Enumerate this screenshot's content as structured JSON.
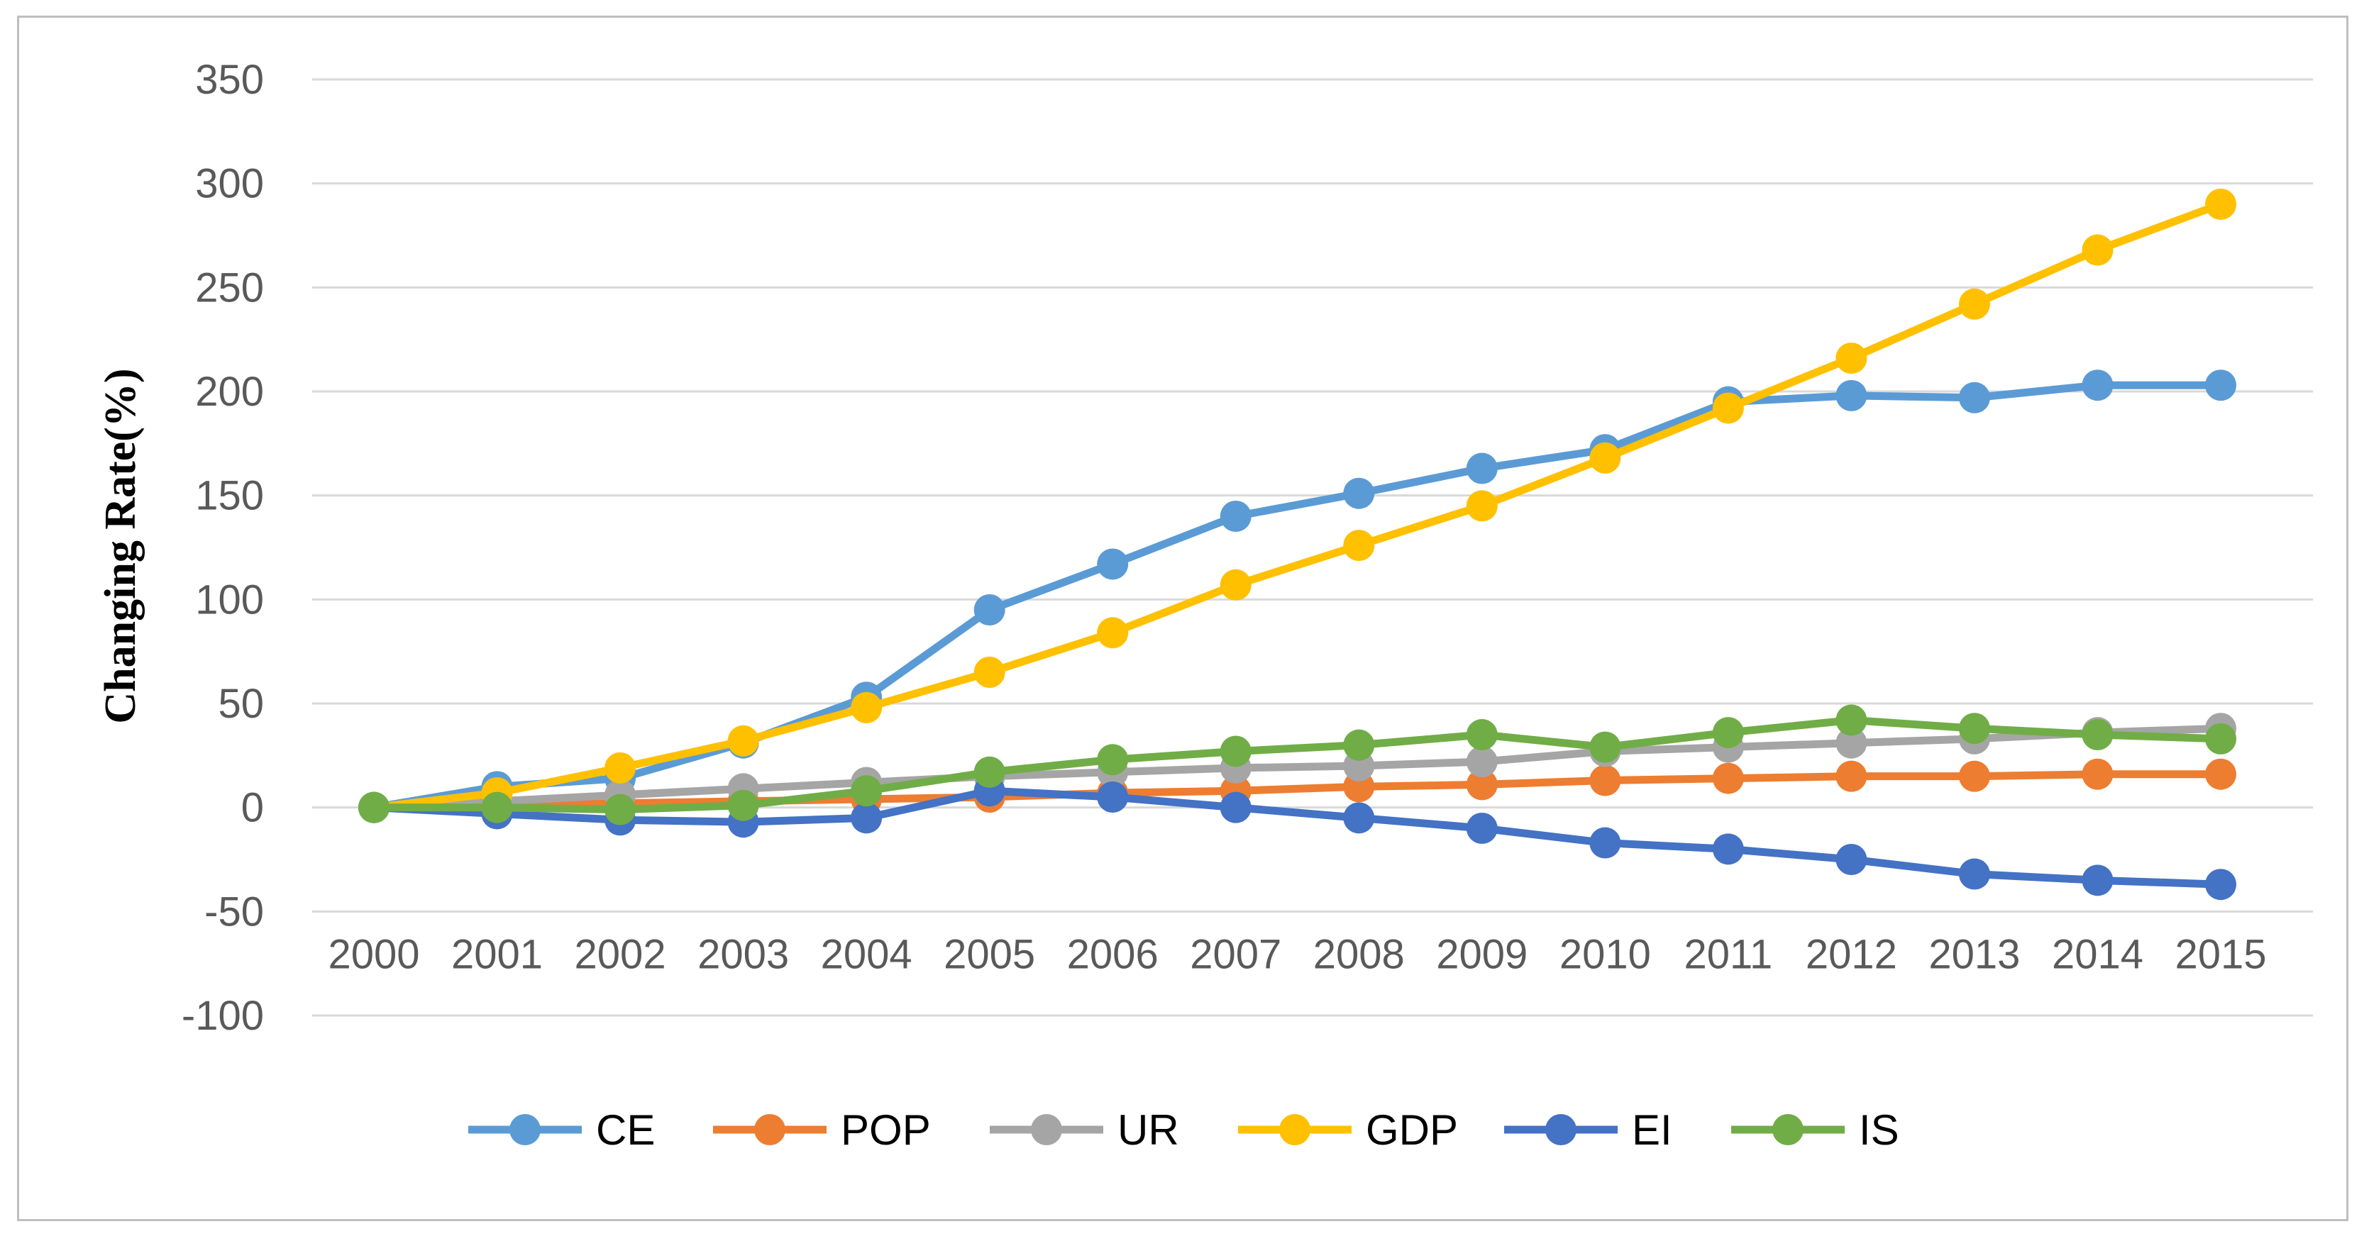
{
  "chart_data": {
    "type": "line",
    "title": "",
    "xlabel": "",
    "ylabel": "Changing Rate(%)",
    "ylim": [
      -100,
      350
    ],
    "yticks": [
      350,
      300,
      250,
      200,
      150,
      100,
      50,
      0,
      -50,
      -100
    ],
    "ytick_labels": [
      "350",
      "300",
      "250",
      "200",
      "150",
      "100",
      "50",
      "0",
      "-50",
      "-100"
    ],
    "categories": [
      "2000",
      "2001",
      "2002",
      "2003",
      "2004",
      "2005",
      "2006",
      "2007",
      "2008",
      "2009",
      "2010",
      "2011",
      "2012",
      "2013",
      "2014",
      "2015"
    ],
    "grid": true,
    "legend_position": "bottom",
    "series": [
      {
        "name": "CE",
        "color": "#5b9bd5",
        "values": [
          0,
          10,
          14,
          31,
          53,
          95,
          117,
          140,
          151,
          163,
          172,
          195,
          198,
          197,
          203,
          203
        ]
      },
      {
        "name": "POP",
        "color": "#ed7d31",
        "values": [
          0,
          1,
          2,
          3,
          4,
          5,
          7,
          8,
          10,
          11,
          13,
          14,
          15,
          15,
          16,
          16
        ]
      },
      {
        "name": "UR",
        "color": "#a5a5a5",
        "values": [
          0,
          3,
          6,
          9,
          12,
          15,
          17,
          19,
          20,
          22,
          27,
          29,
          31,
          33,
          36,
          38
        ]
      },
      {
        "name": "GDP",
        "color": "#ffc000",
        "values": [
          0,
          7,
          19,
          32,
          48,
          65,
          84,
          107,
          126,
          145,
          168,
          192,
          216,
          242,
          268,
          290
        ]
      },
      {
        "name": "EI",
        "color": "#4472c4",
        "values": [
          0,
          -3,
          -6,
          -7,
          -5,
          8,
          5,
          0,
          -5,
          -10,
          -17,
          -20,
          -25,
          -32,
          -35,
          -37
        ]
      },
      {
        "name": "IS",
        "color": "#70ad47",
        "values": [
          0,
          0,
          -1,
          1,
          8,
          17,
          23,
          27,
          30,
          35,
          29,
          36,
          42,
          38,
          35,
          33
        ]
      }
    ]
  }
}
